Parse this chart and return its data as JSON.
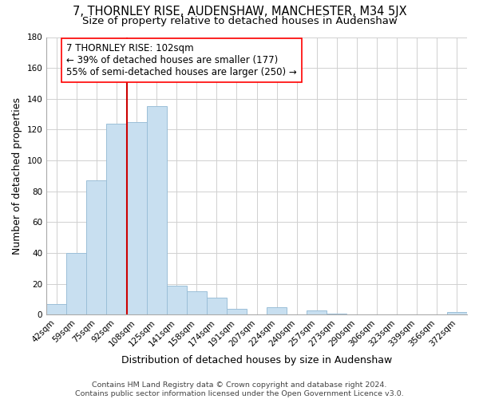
{
  "title": "7, THORNLEY RISE, AUDENSHAW, MANCHESTER, M34 5JX",
  "subtitle": "Size of property relative to detached houses in Audenshaw",
  "xlabel": "Distribution of detached houses by size in Audenshaw",
  "ylabel": "Number of detached properties",
  "footer_lines": [
    "Contains HM Land Registry data © Crown copyright and database right 2024.",
    "Contains public sector information licensed under the Open Government Licence v3.0."
  ],
  "categories": [
    "42sqm",
    "59sqm",
    "75sqm",
    "92sqm",
    "108sqm",
    "125sqm",
    "141sqm",
    "158sqm",
    "174sqm",
    "191sqm",
    "207sqm",
    "224sqm",
    "240sqm",
    "257sqm",
    "273sqm",
    "290sqm",
    "306sqm",
    "323sqm",
    "339sqm",
    "356sqm",
    "372sqm"
  ],
  "values": [
    7,
    40,
    87,
    124,
    125,
    135,
    19,
    15,
    11,
    4,
    0,
    5,
    0,
    3,
    1,
    0,
    0,
    0,
    0,
    0,
    2
  ],
  "bar_color": "#c8dff0",
  "bar_edge_color": "#9bbfd8",
  "vline_bar_index": 4,
  "vline_color": "#cc0000",
  "annotation_box_text": "7 THORNLEY RISE: 102sqm\n← 39% of detached houses are smaller (177)\n55% of semi-detached houses are larger (250) →",
  "ylim": [
    0,
    180
  ],
  "yticks": [
    0,
    20,
    40,
    60,
    80,
    100,
    120,
    140,
    160,
    180
  ],
  "background_color": "#ffffff",
  "grid_color": "#d0d0d0",
  "title_fontsize": 10.5,
  "subtitle_fontsize": 9.5,
  "axis_label_fontsize": 9,
  "tick_fontsize": 7.5,
  "annotation_fontsize": 8.5,
  "footer_fontsize": 6.8
}
